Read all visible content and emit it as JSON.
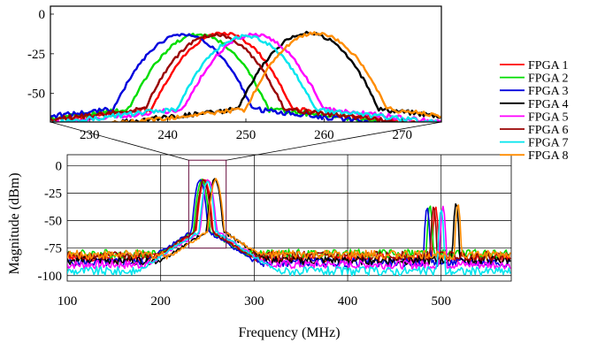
{
  "chart_data": [
    {
      "type": "line",
      "panel": "main",
      "xlabel": "Frequency (MHz)",
      "ylabel": "Magnitude (dBm)",
      "xlim": [
        100,
        575
      ],
      "ylim": [
        -105,
        10
      ],
      "xticks": [
        100,
        200,
        300,
        400,
        500
      ],
      "yticks": [
        0,
        -25,
        -50,
        -75,
        -100
      ],
      "grid": true,
      "series": [
        {
          "name": "FPGA 1",
          "color": "#ff0000",
          "tones": [
            {
              "f": 247,
              "p": -12
            },
            {
              "f": 494,
              "p": -37
            }
          ],
          "floor": -84
        },
        {
          "name": "FPGA 2",
          "color": "#00dd00",
          "tones": [
            {
              "f": 244,
              "p": -13
            },
            {
              "f": 488,
              "p": -36
            }
          ],
          "floor": -80
        },
        {
          "name": "FPGA 3",
          "color": "#0000dd",
          "tones": [
            {
              "f": 242,
              "p": -13
            },
            {
              "f": 485,
              "p": -38
            }
          ],
          "floor": -88
        },
        {
          "name": "FPGA 4",
          "color": "#000000",
          "tones": [
            {
              "f": 258,
              "p": -12
            },
            {
              "f": 516,
              "p": -34
            }
          ],
          "floor": -86
        },
        {
          "name": "FPGA 5",
          "color": "#ff00ff",
          "tones": [
            {
              "f": 251,
              "p": -13
            },
            {
              "f": 502,
              "p": -37
            }
          ],
          "floor": -90
        },
        {
          "name": "FPGA 6",
          "color": "#990000",
          "tones": [
            {
              "f": 246,
              "p": -13
            },
            {
              "f": 492,
              "p": -37
            }
          ],
          "floor": -82
        },
        {
          "name": "FPGA 7",
          "color": "#00e5ee",
          "tones": [
            {
              "f": 250,
              "p": -14
            },
            {
              "f": 500,
              "p": -40
            }
          ],
          "floor": -96
        },
        {
          "name": "FPGA 8",
          "color": "#ff8c00",
          "tones": [
            {
              "f": 259,
              "p": -12
            },
            {
              "f": 518,
              "p": -35
            }
          ],
          "floor": -81
        }
      ]
    },
    {
      "type": "line",
      "panel": "inset-zoom",
      "xlim": [
        225,
        275
      ],
      "ylim": [
        -68,
        5
      ],
      "xticks": [
        230,
        240,
        250,
        260,
        270
      ],
      "yticks": [
        0,
        -25,
        -50
      ],
      "grid": false,
      "zoom_region": {
        "x": [
          230,
          270
        ],
        "y": [
          -75,
          5
        ]
      }
    }
  ],
  "legend": {
    "placement": "right",
    "items": [
      "FPGA 1",
      "FPGA 2",
      "FPGA 3",
      "FPGA 4",
      "FPGA 5",
      "FPGA 6",
      "FPGA 7",
      "FPGA 8"
    ]
  }
}
